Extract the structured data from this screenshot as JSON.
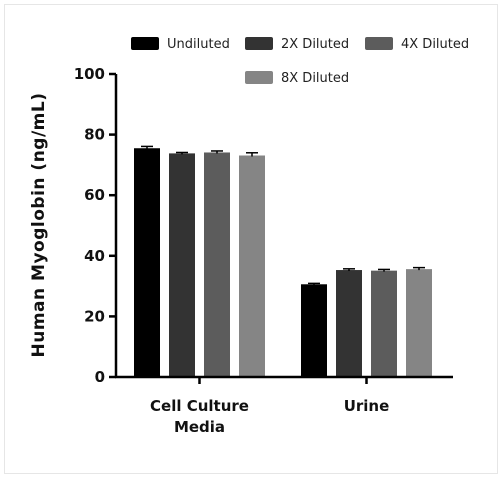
{
  "chart_data": {
    "type": "bar",
    "title": "",
    "xlabel": "",
    "ylabel": "Human Myoglobin (ng/mL)",
    "ylim": [
      0,
      100
    ],
    "yticks": [
      0,
      20,
      40,
      60,
      80,
      100
    ],
    "categories": [
      "Cell Culture Media",
      "Urine"
    ],
    "category_lines": [
      [
        "Cell Culture",
        "Media"
      ],
      [
        "Urine"
      ]
    ],
    "legend_position": "top",
    "grid": false,
    "series": [
      {
        "name": "Undiluted",
        "color": "#000000",
        "values": [
          75.5,
          30.6
        ],
        "errors": [
          0.6,
          0.3
        ]
      },
      {
        "name": "2X Diluted",
        "color": "#333333",
        "values": [
          73.8,
          35.3
        ],
        "errors": [
          0.3,
          0.4
        ]
      },
      {
        "name": "4X Diluted",
        "color": "#5c5c5c",
        "values": [
          74.1,
          35.1
        ],
        "errors": [
          0.5,
          0.4
        ]
      },
      {
        "name": "8X Diluted",
        "color": "#858585",
        "values": [
          73.1,
          35.6
        ],
        "errors": [
          0.9,
          0.5
        ]
      }
    ]
  }
}
